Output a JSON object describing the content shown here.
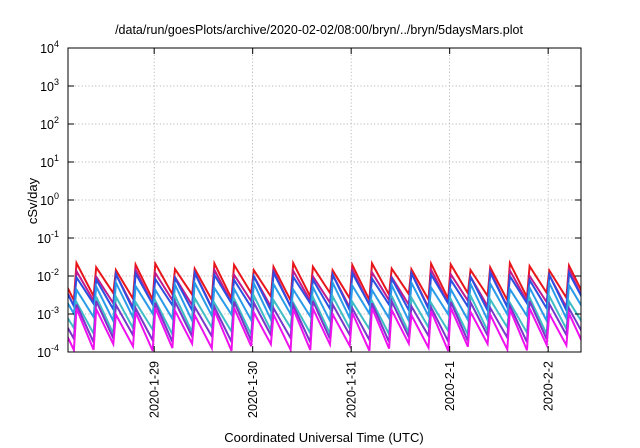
{
  "chart_data": {
    "type": "line",
    "title": "/data/run/goesPlots/archive/2020-02-02/08:00/bryn/../bryn/5daysMars.plot",
    "xlabel": "Coordinated Universal Time (UTC)",
    "ylabel": "cSv/day",
    "yscale": "log",
    "ylim": [
      0.0001,
      10000
    ],
    "y_ticks": [
      {
        "value": 0.0001,
        "base": "10",
        "exp": "-4"
      },
      {
        "value": 0.001,
        "base": "10",
        "exp": "-3"
      },
      {
        "value": 0.01,
        "base": "10",
        "exp": "-2"
      },
      {
        "value": 0.1,
        "base": "10",
        "exp": "-1"
      },
      {
        "value": 1,
        "base": "10",
        "exp": "0"
      },
      {
        "value": 10,
        "base": "10",
        "exp": "1"
      },
      {
        "value": 100,
        "base": "10",
        "exp": "2"
      },
      {
        "value": 1000,
        "base": "10",
        "exp": "3"
      },
      {
        "value": 10000,
        "base": "10",
        "exp": "4"
      }
    ],
    "xlim": [
      "2020-01-28 03:00",
      "2020-02-02 08:00"
    ],
    "x_ticks": [
      {
        "value": "2020-01-29 00:00",
        "label": "2020-1-29"
      },
      {
        "value": "2020-01-30 00:00",
        "label": "2020-1-30"
      },
      {
        "value": "2020-01-31 00:00",
        "label": "2020-1-31"
      },
      {
        "value": "2020-02-01 00:00",
        "label": "2020-2-1"
      },
      {
        "value": "2020-02-02 00:00",
        "label": "2020-2-2"
      }
    ],
    "grid": true,
    "legend": "none",
    "sawtooth_period_hours": 4.8,
    "series": [
      {
        "color": "#e8161b",
        "peak": 0.018,
        "trough": 0.0028
      },
      {
        "color": "#c21a8e",
        "peak": 0.012,
        "trough": 0.0018
      },
      {
        "color": "#2b4fe0",
        "peak": 0.01,
        "trough": 0.0015
      },
      {
        "color": "#2a9be8",
        "peak": 0.0055,
        "trough": 0.0008
      },
      {
        "color": "#3fbcc6",
        "peak": 0.0025,
        "trough": 0.00035
      },
      {
        "color": "#7a35c9",
        "peak": 0.0018,
        "trough": 0.00022
      },
      {
        "color": "#ee12ee",
        "peak": 0.0012,
        "trough": 0.00013
      }
    ]
  }
}
